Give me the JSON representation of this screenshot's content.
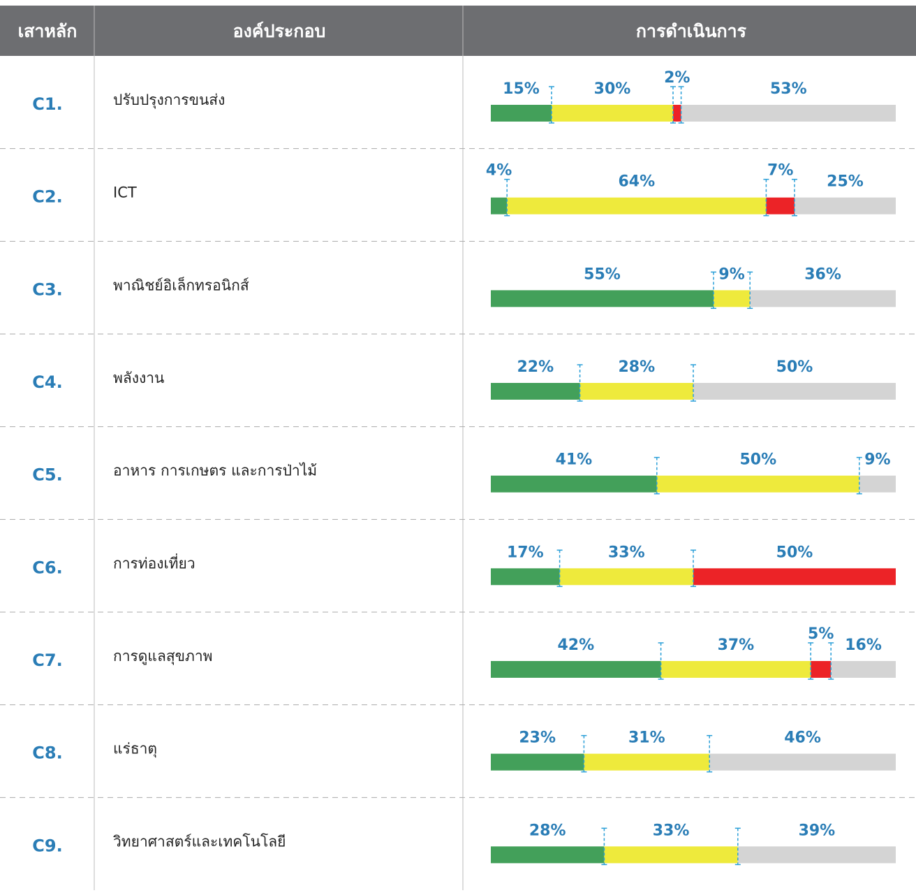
{
  "chart_data": {
    "type": "stacked-bar-table",
    "columns": [
      "เสาหลัก",
      "องค์ประกอบ",
      "การดำเนินการ"
    ],
    "categories": [
      "C1.",
      "C2.",
      "C3.",
      "C4.",
      "C5.",
      "C6.",
      "C7.",
      "C8.",
      "C9."
    ],
    "category_names": [
      "ปรับปรุงการขนส่ง",
      "ICT",
      "พาณิชย์อิเล็กทรอนิกส์",
      "พลังงาน",
      "อาหาร การเกษตร และการป่าไม้",
      "การท่องเที่ยว",
      "การดูแลสุขภาพ",
      "แร่ธาตุ",
      "วิทยาศาสตร์และเทคโนโลยี"
    ],
    "xlim": [
      0,
      100
    ],
    "series": [
      {
        "color": "#43a05a",
        "values": [
          15,
          4,
          55,
          22,
          41,
          17,
          42,
          23,
          28
        ],
        "value_labels": [
          "15%",
          "4%",
          "55%",
          "22%",
          "41%",
          "17%",
          "42%",
          "23%",
          "28%"
        ]
      },
      {
        "color": "#eeea3c",
        "values": [
          30,
          64,
          9,
          28,
          50,
          33,
          37,
          31,
          33
        ],
        "value_labels": [
          "30%",
          "64%",
          "9%",
          "28%",
          "50%",
          "33%",
          "37%",
          "31%",
          "33%"
        ]
      },
      {
        "color": "#ec2327",
        "values": [
          2,
          7,
          null,
          null,
          null,
          50,
          5,
          null,
          null
        ],
        "value_labels": [
          "2%",
          "7%",
          null,
          null,
          null,
          "50%",
          "5%",
          null,
          null
        ]
      },
      {
        "color": "#d4d4d4",
        "values": [
          53,
          25,
          36,
          50,
          9,
          null,
          16,
          46,
          39
        ],
        "value_labels": [
          "53%",
          "25%",
          "36%",
          "50%",
          "9%",
          null,
          "16%",
          "46%",
          "39%"
        ]
      }
    ]
  }
}
